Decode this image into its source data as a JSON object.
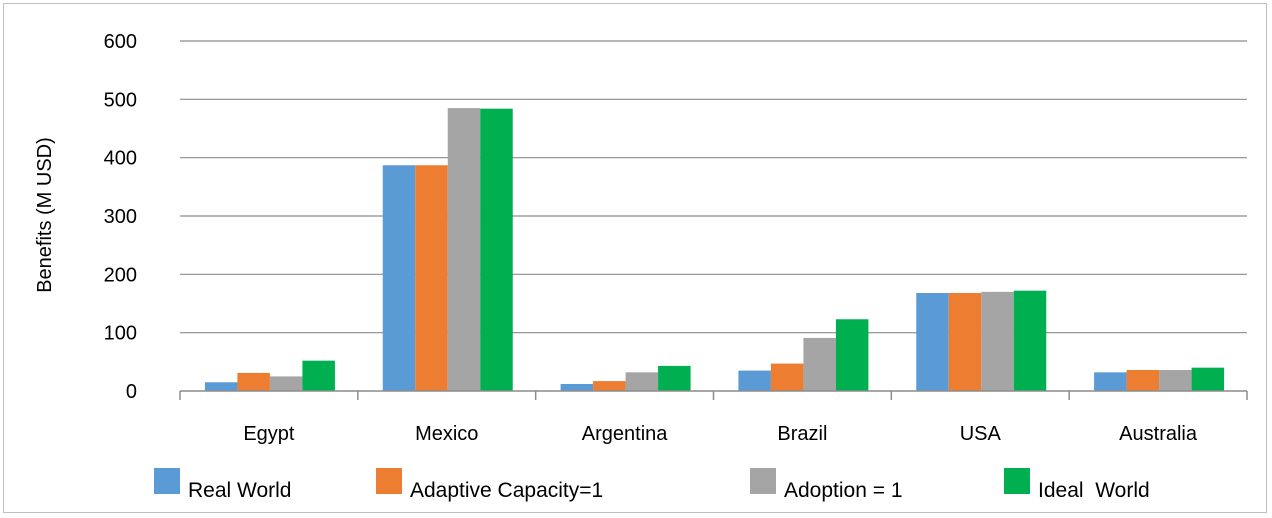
{
  "chart_data": {
    "type": "bar",
    "title": "",
    "xlabel": "",
    "ylabel": "Benefits (M USD)",
    "ylim": [
      0,
      600
    ],
    "yticks": [
      0,
      100,
      200,
      300,
      400,
      500,
      600
    ],
    "grid": true,
    "legend_position": "bottom",
    "categories": [
      "Egypt",
      "Mexico",
      "Argentina",
      "Brazil",
      "USA",
      "Australia"
    ],
    "series": [
      {
        "name": "Real World",
        "color": "#5b9bd5",
        "values": [
          15,
          387,
          12,
          35,
          168,
          32
        ]
      },
      {
        "name": "Adaptive Capacity=1",
        "color": "#ed7d31",
        "values": [
          31,
          387,
          17,
          47,
          168,
          36
        ]
      },
      {
        "name": "Adoption = 1",
        "color": "#a5a5a5",
        "values": [
          25,
          485,
          32,
          91,
          170,
          36
        ]
      },
      {
        "name": "Ideal  World",
        "color": "#00b050",
        "values": [
          52,
          484,
          43,
          123,
          172,
          40
        ]
      }
    ]
  }
}
